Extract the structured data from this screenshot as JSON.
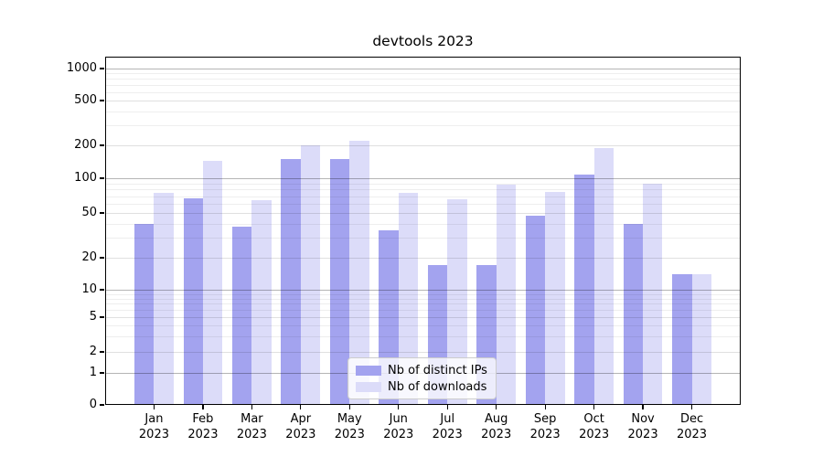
{
  "chart_data": {
    "type": "bar",
    "title": "devtools 2023",
    "categories": [
      "Jan 2023",
      "Feb 2023",
      "Mar 2023",
      "Apr 2023",
      "May 2023",
      "Jun 2023",
      "Jul 2023",
      "Aug 2023",
      "Sep 2023",
      "Oct 2023",
      "Nov 2023",
      "Dec 2023"
    ],
    "series": [
      {
        "name": "Nb of distinct IPs",
        "color": "#a3a3ef",
        "values": [
          40,
          67,
          38,
          150,
          150,
          35,
          17,
          17,
          47,
          108,
          40,
          14
        ]
      },
      {
        "name": "Nb of downloads",
        "color": "#dcdcf9",
        "values": [
          75,
          145,
          65,
          200,
          220,
          75,
          66,
          88,
          76,
          190,
          90,
          14
        ]
      }
    ],
    "yscale": "symlog",
    "yticks": [
      0,
      1,
      2,
      5,
      10,
      20,
      50,
      100,
      200,
      500,
      1000
    ],
    "ylim": [
      0,
      1300
    ],
    "xlabel": "",
    "ylabel": "",
    "grid": true,
    "legend_position": "lower center"
  }
}
